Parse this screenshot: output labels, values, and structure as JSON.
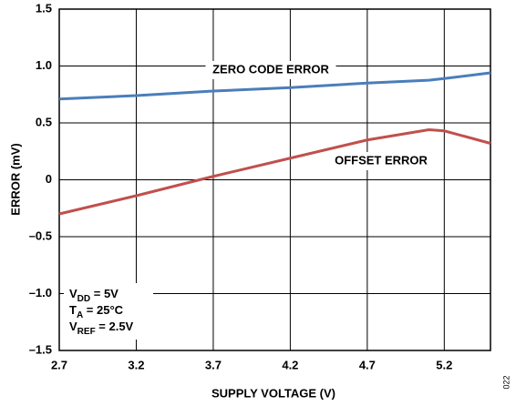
{
  "chart_data": {
    "type": "line",
    "x_label": "SUPPLY VOLTAGE (V)",
    "y_label": "ERROR (mV)",
    "x": [
      2.7,
      3.2,
      3.7,
      4.2,
      4.7,
      5.1,
      5.2,
      5.5
    ],
    "series": [
      {
        "name": "ZERO CODE ERROR",
        "color": "#4a7ebb",
        "values": [
          0.71,
          0.74,
          0.78,
          0.81,
          0.85,
          0.875,
          0.89,
          0.94
        ]
      },
      {
        "name": "OFFSET ERROR",
        "color": "#c0504d",
        "values": [
          -0.3,
          -0.14,
          0.03,
          0.19,
          0.35,
          0.44,
          0.43,
          0.32
        ]
      }
    ],
    "xlim": [
      2.7,
      5.5
    ],
    "xticks": [
      2.7,
      3.2,
      3.7,
      4.2,
      4.7,
      5.2
    ],
    "ylim": [
      -1.5,
      1.5
    ],
    "yticks": [
      1.5,
      {
        "value": 1.0,
        "label": "1.0"
      },
      0.5,
      0,
      {
        "value": -0.5,
        "label": "–0.5"
      },
      {
        "value": -1.0,
        "label": "–1.0"
      },
      {
        "value": -1.5,
        "label": "–1.5"
      }
    ],
    "grid": true,
    "conditions": [
      {
        "main": "V",
        "sub": "DD",
        "rest": " = 5V"
      },
      {
        "main": "T",
        "sub": "A",
        "rest": " = 25°C"
      },
      {
        "main": "V",
        "sub": "REF",
        "rest": " = 2.5V"
      }
    ],
    "figure_number": "022"
  }
}
